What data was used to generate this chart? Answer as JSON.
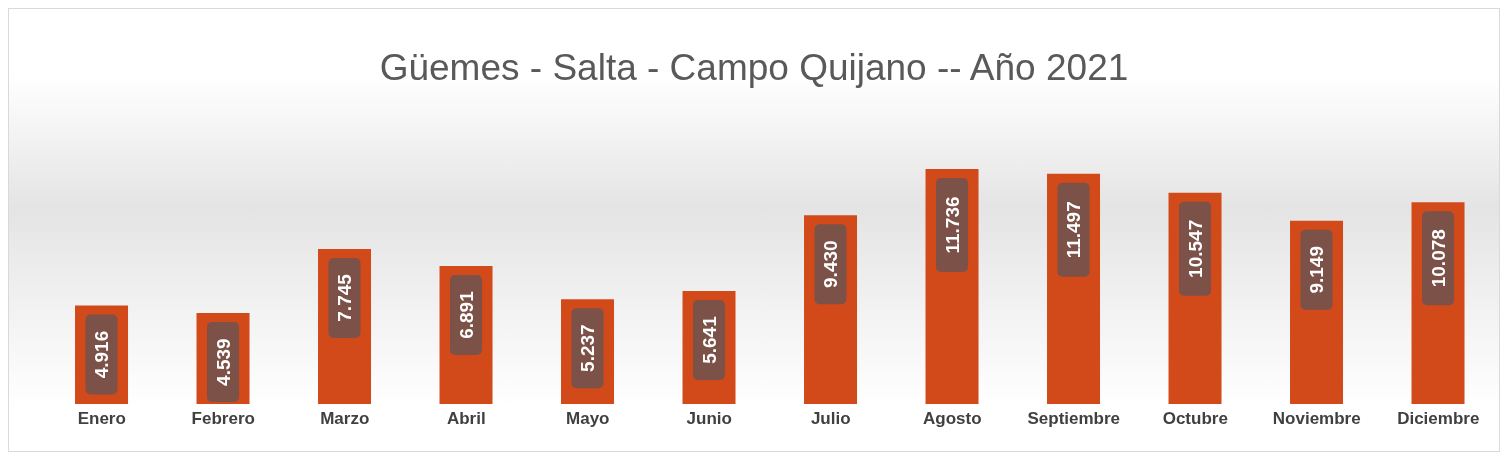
{
  "chart_data": {
    "type": "bar",
    "title": "Güemes - Salta - Campo Quijano -- Año 2021",
    "categories": [
      "Enero",
      "Febrero",
      "Marzo",
      "Abril",
      "Mayo",
      "Junio",
      "Julio",
      "Agosto",
      "Septiembre",
      "Octubre",
      "Noviembre",
      "Diciembre"
    ],
    "values": [
      4916,
      4539,
      7745,
      6891,
      5237,
      5641,
      9430,
      11736,
      11497,
      10547,
      9149,
      10078
    ],
    "value_labels": [
      "4.916",
      "4.539",
      "7.745",
      "6.891",
      "5.237",
      "5.641",
      "9.430",
      "11.736",
      "11.497",
      "10.547",
      "9.149",
      "10.078"
    ],
    "color": "#d2491a",
    "grid": false,
    "legend": false
  }
}
